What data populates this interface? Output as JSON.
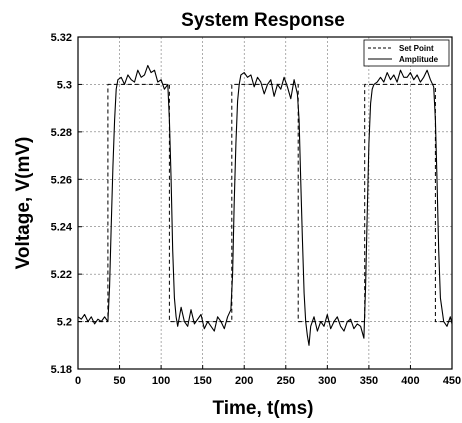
{
  "chart_data": {
    "type": "line",
    "title": "System Response",
    "xlabel": "Time, t(ms)",
    "ylabel": "Voltage, V(mV)",
    "xlim": [
      0,
      450
    ],
    "ylim": [
      5.18,
      5.32
    ],
    "x_ticks": [
      0,
      50,
      100,
      150,
      200,
      250,
      300,
      350,
      400,
      450
    ],
    "y_ticks": [
      5.18,
      5.2,
      5.22,
      5.24,
      5.26,
      5.28,
      5.3,
      5.32
    ],
    "x_tick_labels": [
      "0",
      "50",
      "100",
      "150",
      "200",
      "250",
      "300",
      "350",
      "400",
      "450"
    ],
    "y_tick_labels": [
      "5.18",
      "5.2",
      "5.22",
      "5.24",
      "5.26",
      "5.28",
      "5.3",
      "5.32"
    ],
    "grid": true,
    "legend_position": "top-right",
    "series": [
      {
        "name": "Set Point",
        "style": "dashed",
        "color": "#000000",
        "x": [
          0,
          36,
          36,
          110,
          110,
          185,
          185,
          265,
          265,
          345,
          345,
          430,
          430,
          450
        ],
        "y": [
          5.2,
          5.2,
          5.3,
          5.3,
          5.2,
          5.2,
          5.3,
          5.3,
          5.2,
          5.2,
          5.3,
          5.3,
          5.2,
          5.2
        ]
      },
      {
        "name": "Amplitude",
        "style": "solid",
        "color": "#000000",
        "x": [
          0,
          4,
          8,
          12,
          16,
          20,
          24,
          28,
          32,
          36,
          38,
          40,
          42,
          44,
          46,
          48,
          52,
          56,
          60,
          64,
          68,
          72,
          76,
          80,
          84,
          88,
          92,
          96,
          100,
          104,
          108,
          110,
          112,
          114,
          116,
          118,
          120,
          124,
          128,
          132,
          136,
          140,
          144,
          148,
          152,
          156,
          160,
          164,
          168,
          172,
          176,
          180,
          184,
          186,
          188,
          190,
          192,
          194,
          196,
          200,
          204,
          208,
          212,
          216,
          220,
          224,
          228,
          232,
          236,
          240,
          244,
          248,
          252,
          256,
          260,
          264,
          266,
          268,
          270,
          272,
          274,
          276,
          278,
          280,
          284,
          288,
          292,
          296,
          300,
          304,
          308,
          312,
          316,
          320,
          324,
          328,
          332,
          336,
          340,
          344,
          346,
          348,
          350,
          352,
          354,
          356,
          360,
          364,
          368,
          372,
          376,
          380,
          384,
          388,
          392,
          396,
          400,
          404,
          408,
          412,
          416,
          420,
          424,
          428,
          430,
          432,
          434,
          436,
          440,
          444,
          448,
          450
        ],
        "y": [
          5.202,
          5.201,
          5.203,
          5.2,
          5.202,
          5.199,
          5.201,
          5.2,
          5.202,
          5.2,
          5.215,
          5.24,
          5.265,
          5.285,
          5.298,
          5.302,
          5.303,
          5.3,
          5.304,
          5.302,
          5.301,
          5.306,
          5.303,
          5.304,
          5.308,
          5.305,
          5.306,
          5.301,
          5.302,
          5.298,
          5.3,
          5.285,
          5.26,
          5.23,
          5.21,
          5.202,
          5.198,
          5.206,
          5.2,
          5.198,
          5.205,
          5.199,
          5.201,
          5.203,
          5.197,
          5.2,
          5.198,
          5.196,
          5.202,
          5.2,
          5.197,
          5.202,
          5.205,
          5.22,
          5.25,
          5.275,
          5.293,
          5.3,
          5.304,
          5.305,
          5.303,
          5.304,
          5.299,
          5.303,
          5.301,
          5.296,
          5.3,
          5.302,
          5.295,
          5.3,
          5.298,
          5.303,
          5.299,
          5.294,
          5.302,
          5.296,
          5.285,
          5.26,
          5.235,
          5.212,
          5.2,
          5.194,
          5.19,
          5.198,
          5.202,
          5.196,
          5.2,
          5.198,
          5.203,
          5.197,
          5.2,
          5.202,
          5.198,
          5.196,
          5.2,
          5.201,
          5.197,
          5.199,
          5.198,
          5.193,
          5.215,
          5.245,
          5.275,
          5.292,
          5.298,
          5.3,
          5.301,
          5.303,
          5.301,
          5.305,
          5.302,
          5.304,
          5.301,
          5.306,
          5.303,
          5.303,
          5.305,
          5.302,
          5.304,
          5.301,
          5.303,
          5.306,
          5.302,
          5.299,
          5.285,
          5.26,
          5.23,
          5.21,
          5.2,
          5.198,
          5.202,
          5.199
        ]
      }
    ]
  }
}
